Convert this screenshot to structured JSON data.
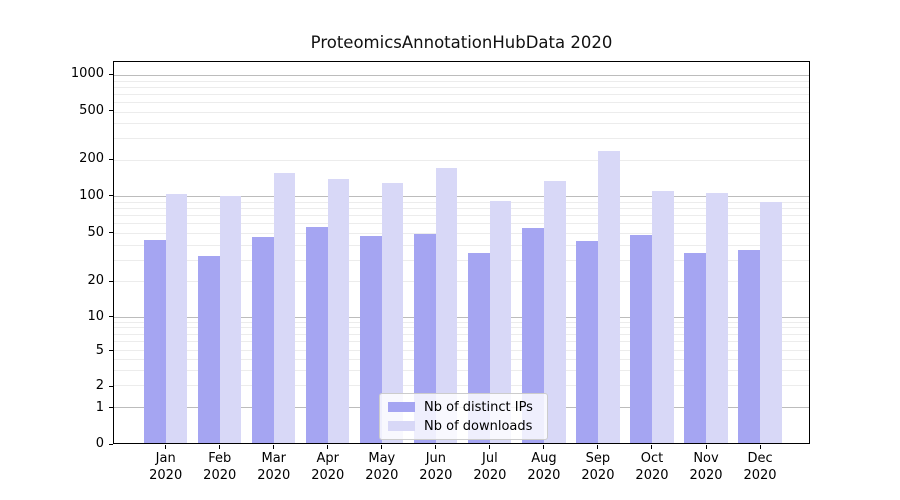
{
  "title": "ProteomicsAnnotationHubData 2020",
  "colors": {
    "bar_dark": "#a5a5f2",
    "bar_light": "#d8d8f7",
    "grid_major": "#bcbcbc",
    "grid_minor": "#ececec",
    "axis": "#000000",
    "text": "#000000"
  },
  "legend": {
    "items": [
      {
        "label": "Nb of distinct IPs",
        "color_key": "bar_dark"
      },
      {
        "label": "Nb of downloads",
        "color_key": "bar_light"
      }
    ]
  },
  "chart_data": {
    "type": "bar",
    "title": "ProteomicsAnnotationHubData 2020",
    "categories": [
      "Jan\n2020",
      "Feb\n2020",
      "Mar\n2020",
      "Apr\n2020",
      "May\n2020",
      "Jun\n2020",
      "Jul\n2020",
      "Aug\n2020",
      "Sep\n2020",
      "Oct\n2020",
      "Nov\n2020",
      "Dec\n2020"
    ],
    "series": [
      {
        "name": "Nb of distinct IPs",
        "values": [
          44,
          32,
          46,
          56,
          47,
          49,
          34,
          55,
          43,
          48,
          34,
          36
        ]
      },
      {
        "name": "Nb of downloads",
        "values": [
          105,
          101,
          155,
          139,
          129,
          172,
          92,
          132,
          235,
          110,
          107,
          90
        ]
      }
    ],
    "xlabel": "",
    "ylabel": "",
    "yscale": "symlog",
    "ylim": [
      0,
      1280
    ],
    "grid": true,
    "legend_position": "lower center",
    "scale": {
      "ticks": [
        {
          "v": 0,
          "f": 0.0
        },
        {
          "v": 1,
          "f": 0.094
        },
        {
          "v": 2,
          "f": 0.151
        },
        {
          "v": 5,
          "f": 0.244
        },
        {
          "v": 10,
          "f": 0.332
        },
        {
          "v": 20,
          "f": 0.425
        },
        {
          "v": 50,
          "f": 0.551
        },
        {
          "v": 100,
          "f": 0.648
        },
        {
          "v": 200,
          "f": 0.744
        },
        {
          "v": 500,
          "f": 0.87
        },
        {
          "v": 1000,
          "f": 0.966
        }
      ],
      "major_lines": [
        1,
        10,
        100,
        1000
      ],
      "minor_lines": [
        2,
        3,
        4,
        5,
        6,
        7,
        8,
        9,
        20,
        30,
        40,
        50,
        60,
        70,
        80,
        90,
        200,
        300,
        400,
        500,
        600,
        700,
        800,
        900
      ]
    }
  }
}
